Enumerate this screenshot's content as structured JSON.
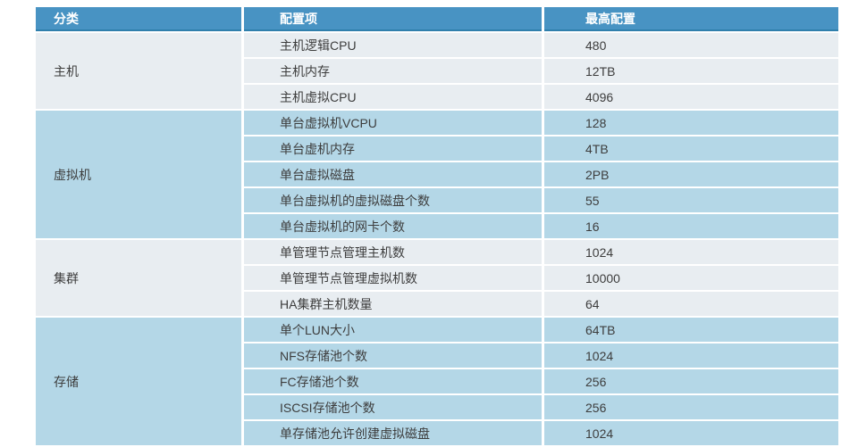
{
  "table": {
    "headers": {
      "category": "分类",
      "config_item": "配置项",
      "max_config": "最高配置"
    },
    "groups": [
      {
        "category": "主机",
        "rows": [
          {
            "config_item": "主机逻辑CPU",
            "max_config": "480"
          },
          {
            "config_item": "主机内存",
            "max_config": "12TB"
          },
          {
            "config_item": "主机虚拟CPU",
            "max_config": "4096"
          }
        ]
      },
      {
        "category": "虚拟机",
        "rows": [
          {
            "config_item": "单台虚拟机VCPU",
            "max_config": "128"
          },
          {
            "config_item": "单台虚机内存",
            "max_config": "4TB"
          },
          {
            "config_item": "单台虚拟磁盘",
            "max_config": "2PB"
          },
          {
            "config_item": "单台虚拟机的虚拟磁盘个数",
            "max_config": "55"
          },
          {
            "config_item": "单台虚拟机的网卡个数",
            "max_config": "16"
          }
        ]
      },
      {
        "category": "集群",
        "rows": [
          {
            "config_item": "单管理节点管理主机数",
            "max_config": "1024"
          },
          {
            "config_item": "单管理节点管理虚拟机数",
            "max_config": "10000"
          },
          {
            "config_item": "HA集群主机数量",
            "max_config": "64"
          }
        ]
      },
      {
        "category": "存储",
        "rows": [
          {
            "config_item": "单个LUN大小",
            "max_config": "64TB"
          },
          {
            "config_item": "NFS存储池个数",
            "max_config": "1024"
          },
          {
            "config_item": "FC存储池个数",
            "max_config": "256"
          },
          {
            "config_item": "ISCSI存储池个数",
            "max_config": "256"
          },
          {
            "config_item": "单存储池允许创建虚拟磁盘",
            "max_config": "1024"
          }
        ]
      }
    ],
    "colors": {
      "header_bg": "#4893c3",
      "header_border": "#2f7fac",
      "header_text": "#ffffff",
      "group_bg_light": "#e8edf1",
      "group_bg_blue": "#b4d7e7",
      "body_text": "#3d3d3d"
    }
  }
}
